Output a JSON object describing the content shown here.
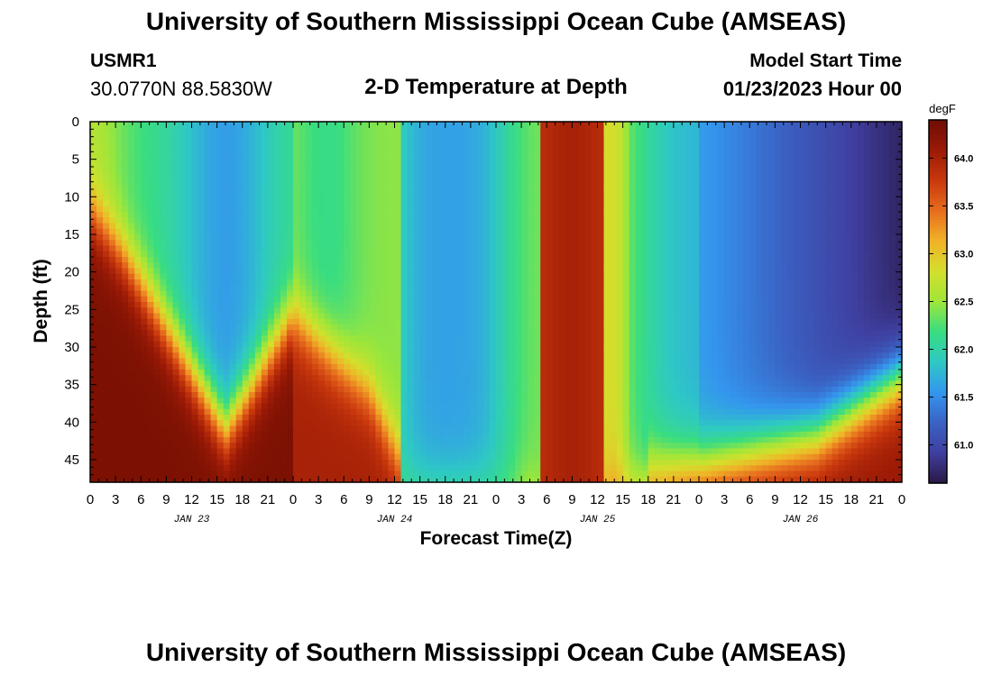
{
  "header": {
    "title": "University of Southern Mississippi Ocean Cube (AMSEAS)",
    "station": "USMR1",
    "coordinates": "30.0770N  88.5830W",
    "subtitle": "2-D Temperature at Depth",
    "model_start_label": "Model Start Time",
    "model_start_value": "01/23/2023 Hour 00"
  },
  "footer": {
    "title": "University of Southern Mississippi Ocean Cube (AMSEAS)"
  },
  "chart_data": {
    "type": "heatmap",
    "title": "2-D Temperature at Depth",
    "xlabel": "Forecast Time(Z)",
    "ylabel": "Depth (ft)",
    "x_range_hours": [
      0,
      96
    ],
    "y_range_ft": [
      0,
      48
    ],
    "x_tick_labels": [
      "0",
      "3",
      "6",
      "9",
      "12",
      "15",
      "18",
      "21",
      "0",
      "3",
      "6",
      "9",
      "12",
      "15",
      "18",
      "21",
      "0",
      "3",
      "6",
      "9",
      "12",
      "15",
      "18",
      "21",
      "0",
      "3",
      "6",
      "9",
      "12",
      "15",
      "18",
      "21",
      "0"
    ],
    "y_ticks": [
      0,
      5,
      10,
      15,
      20,
      25,
      30,
      35,
      40,
      45
    ],
    "day_labels": [
      {
        "text": "JAN 23",
        "hour": 12
      },
      {
        "text": "JAN 24",
        "hour": 36
      },
      {
        "text": "JAN 25",
        "hour": 60
      },
      {
        "text": "JAN 26",
        "hour": 84
      }
    ],
    "colorbar": {
      "units": "degF",
      "range": [
        60.6,
        64.4
      ],
      "ticks": [
        "61.0",
        "61.5",
        "62.0",
        "62.5",
        "63.0",
        "63.5",
        "64.0"
      ],
      "colors": [
        "#2a1846",
        "#3f3f9f",
        "#3a62c4",
        "#3496ee",
        "#2ec9c4",
        "#39dd80",
        "#9ee63a",
        "#d4df2c",
        "#f0b228",
        "#e76d1e",
        "#c9380d",
        "#9b1a06",
        "#6e0d02"
      ]
    },
    "field_description": "temperature (degF) vs forecast hour (x) and depth ft (y)",
    "field_keypoints": [
      {
        "hour": 0,
        "surface": 62.6,
        "bottom": 64.3
      },
      {
        "hour": 7,
        "surface": 62.2,
        "bottom": 64.3
      },
      {
        "hour": 16,
        "surface": 61.6,
        "bottom": 64.0
      },
      {
        "hour": 24,
        "surface": 62.2,
        "bottom": 64.3
      },
      {
        "hour": 33,
        "surface": 62.5,
        "bottom": 64.0
      },
      {
        "hour": 43,
        "surface": 61.6,
        "bottom": 62.0
      },
      {
        "hour": 51,
        "surface": 62.3,
        "bottom": 62.7
      },
      {
        "hour": 58,
        "surface": 64.0,
        "bottom": 64.0
      },
      {
        "hour": 62,
        "surface": 62.7,
        "bottom": 62.7
      },
      {
        "hour": 72,
        "surface": 61.6,
        "bottom": 63.8
      },
      {
        "hour": 86,
        "surface": 61.2,
        "bottom": 64.1
      },
      {
        "hour": 96,
        "surface": 60.7,
        "bottom": 64.2
      }
    ]
  }
}
